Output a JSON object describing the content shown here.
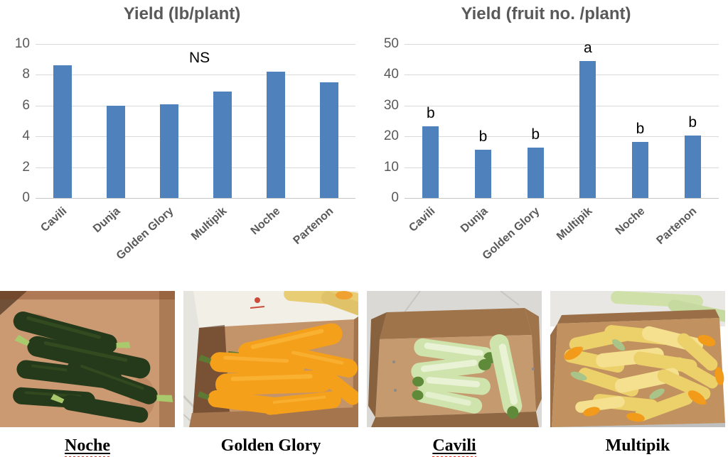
{
  "chart_data": [
    {
      "type": "bar",
      "title": "Yield (lb/plant)",
      "annotation": "NS",
      "categories": [
        "Cavili",
        "Dunja",
        "Golden Glory",
        "Multipik",
        "Noche",
        "Partenon"
      ],
      "values": [
        8.6,
        6.0,
        6.1,
        6.9,
        8.2,
        7.5
      ],
      "letters": null,
      "ylim": [
        0,
        10
      ],
      "yticks": [
        0,
        2,
        4,
        6,
        8,
        10
      ],
      "bar_color": "#4f81bd",
      "grid": true,
      "legend": "none",
      "xlabel": "",
      "ylabel": ""
    },
    {
      "type": "bar",
      "title": "Yield (fruit no. /plant)",
      "annotation": "",
      "categories": [
        "Cavili",
        "Dunja",
        "Golden Glory",
        "Multipik",
        "Noche",
        "Partenon"
      ],
      "values": [
        23.3,
        15.6,
        16.3,
        44.5,
        18.3,
        20.3
      ],
      "letters": [
        "b",
        "b",
        "b",
        "a",
        "b",
        "b"
      ],
      "ylim": [
        0,
        50
      ],
      "yticks": [
        0,
        10,
        20,
        30,
        40,
        50
      ],
      "bar_color": "#4f81bd",
      "grid": true,
      "legend": "none",
      "xlabel": "",
      "ylabel": ""
    }
  ],
  "style": {
    "title_color": "#595959",
    "tick_color": "#595959",
    "gridline_color": "#d9d9d9",
    "annotation_color": "#000000"
  },
  "photos": [
    {
      "label": "Noche",
      "underlined_with_squiggle": true,
      "description": "dark green zucchini in cardboard box",
      "colors": {
        "squash": "#25391b",
        "squash_hi": "#3c5a24",
        "stem": "#a8c96c",
        "box": "#cb9a73",
        "box_dark": "#aa7b55",
        "blossom": "#f29b1b",
        "bg": "#cb9a73"
      }
    },
    {
      "label": "Golden Glory",
      "underlined_with_squiggle": false,
      "description": "golden orange zucchini in cardboard box",
      "colors": {
        "squash": "#f5a01b",
        "squash_hi": "#fcbc43",
        "stem": "#5d7a35",
        "box": "#c3936a",
        "box_dark": "#a5764e",
        "blossom": "#ef9c2a",
        "bg": "#e6e4df"
      }
    },
    {
      "label": "Cavili",
      "underlined_with_squiggle": true,
      "description": "pale green zucchini in cardboard box",
      "colors": {
        "squash": "#cfe3ad",
        "squash_hi": "#edf4dc",
        "stem": "#5e8a39",
        "box": "#c59a6e",
        "box_dark": "#a0744b",
        "blossom": "#f29b1b",
        "bg": "#dad9d5"
      }
    },
    {
      "label": "Multipik",
      "underlined_with_squiggle": false,
      "description": "yellow squash with blossoms in cardboard box",
      "colors": {
        "squash": "#ecd06a",
        "squash_hi": "#f4e08e",
        "stem": "#a9c488",
        "box": "#c1925f",
        "box_dark": "#9a6f47",
        "blossom": "#f29b1b",
        "bg": "#e8e7e3"
      }
    }
  ]
}
